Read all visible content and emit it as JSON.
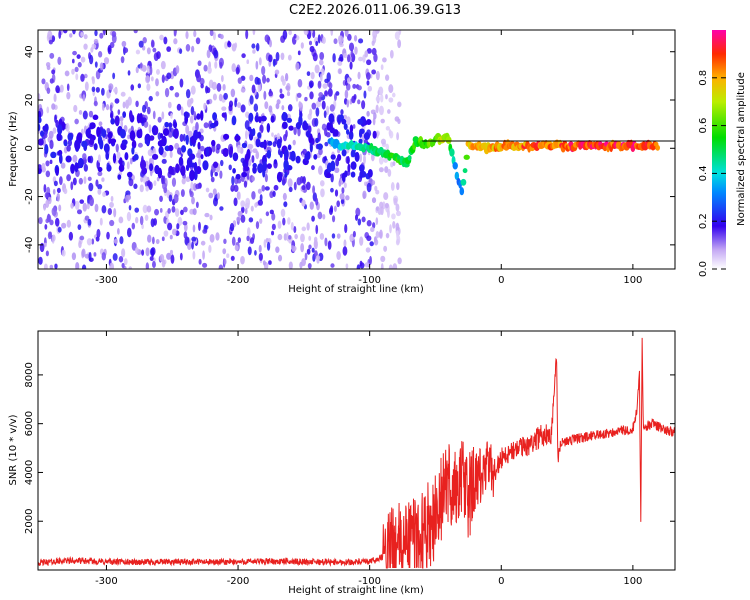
{
  "title": "C2E2.2026.011.06.39.G13",
  "colors": {
    "snr_line": "#e8211f",
    "spectro_strong": "#4400dd",
    "spectro_weak": "#c9b0f2",
    "track_line": "#000000"
  },
  "chart_data": [
    {
      "id": "spectrogram",
      "type": "heatmap",
      "title": "",
      "xlabel": "Height of straight line (km)",
      "ylabel": "Frequency (Hz)",
      "xlim": [
        -352,
        132
      ],
      "ylim": [
        -50,
        49
      ],
      "xticks": [
        -300,
        -200,
        -100,
        0,
        100
      ],
      "xtick_labels": [
        "-300",
        "-200",
        "-100",
        "0",
        "100"
      ],
      "yticks": [
        -40,
        -20,
        0,
        20,
        40
      ],
      "ytick_labels": [
        "-40",
        "-20",
        "0",
        "20",
        "40"
      ],
      "noise_extent_x": [
        -352,
        -95
      ],
      "ridge_points": [
        {
          "x": -130,
          "y": 2,
          "a": 0.35
        },
        {
          "x": -115,
          "y": 1,
          "a": 0.45
        },
        {
          "x": -100,
          "y": 0,
          "a": 0.5
        },
        {
          "x": -90,
          "y": -2,
          "a": 0.55
        },
        {
          "x": -80,
          "y": -4,
          "a": 0.6
        },
        {
          "x": -72,
          "y": -6,
          "a": 0.5
        },
        {
          "x": -65,
          "y": 3,
          "a": 0.6
        },
        {
          "x": -55,
          "y": 2,
          "a": 0.65
        },
        {
          "x": -48,
          "y": 4,
          "a": 0.7
        },
        {
          "x": -40,
          "y": 4,
          "a": 0.72
        },
        {
          "x": -35,
          "y": -8,
          "a": 0.35
        },
        {
          "x": -30,
          "y": -18,
          "a": 0.3
        },
        {
          "x": -25,
          "y": 1,
          "a": 0.8
        },
        {
          "x": -10,
          "y": 0,
          "a": 0.85
        },
        {
          "x": 5,
          "y": 1,
          "a": 0.85
        },
        {
          "x": 20,
          "y": 1,
          "a": 0.9
        },
        {
          "x": 40,
          "y": 1,
          "a": 0.9
        },
        {
          "x": 60,
          "y": 1,
          "a": 0.95
        },
        {
          "x": 80,
          "y": 1,
          "a": 0.95
        },
        {
          "x": 100,
          "y": 1,
          "a": 0.95
        },
        {
          "x": 120,
          "y": 1,
          "a": 0.95
        }
      ],
      "colorbar": {
        "label": "Normalized spectral amplitude",
        "range": [
          0,
          1
        ],
        "ticks": [
          0.0,
          0.2,
          0.4,
          0.6,
          0.8
        ],
        "tick_labels": [
          "0.0",
          "0.2",
          "0.4",
          "0.6",
          "0.8"
        ]
      }
    },
    {
      "id": "snr",
      "type": "line",
      "title": "",
      "xlabel": "Height of straight line (km)",
      "ylabel": "SNR (10 * v/v)",
      "xlim": [
        -352,
        132
      ],
      "ylim": [
        0,
        9800
      ],
      "xticks": [
        -300,
        -200,
        -100,
        0,
        100
      ],
      "xtick_labels": [
        "-300",
        "-200",
        "-100",
        "0",
        "100"
      ],
      "yticks": [
        2000,
        4000,
        6000,
        8000
      ],
      "ytick_labels": [
        "2000",
        "4000",
        "6000",
        "8000"
      ],
      "series": [
        {
          "name": "SNR",
          "x": [
            -352,
            -330,
            -300,
            -270,
            -240,
            -210,
            -180,
            -150,
            -120,
            -100,
            -90,
            -80,
            -70,
            -60,
            -50,
            -45,
            -40,
            -35,
            -30,
            -25,
            -20,
            -15,
            -10,
            -5,
            0,
            10,
            20,
            30,
            38,
            42,
            43,
            44,
            46,
            50,
            60,
            70,
            80,
            90,
            100,
            103,
            105,
            106,
            107,
            108,
            110,
            115,
            120,
            125,
            132
          ],
          "y": [
            250,
            350,
            300,
            280,
            300,
            280,
            320,
            300,
            280,
            300,
            500,
            900,
            1200,
            1500,
            2200,
            3000,
            3600,
            3200,
            3800,
            3000,
            3500,
            3900,
            4200,
            4000,
            4600,
            4900,
            5100,
            5500,
            5600,
            8900,
            4400,
            5000,
            5200,
            5300,
            5400,
            5500,
            5600,
            5700,
            5800,
            6500,
            8000,
            1700,
            9500,
            5800,
            5900,
            6000,
            5850,
            5750,
            5650
          ]
        }
      ]
    }
  ]
}
